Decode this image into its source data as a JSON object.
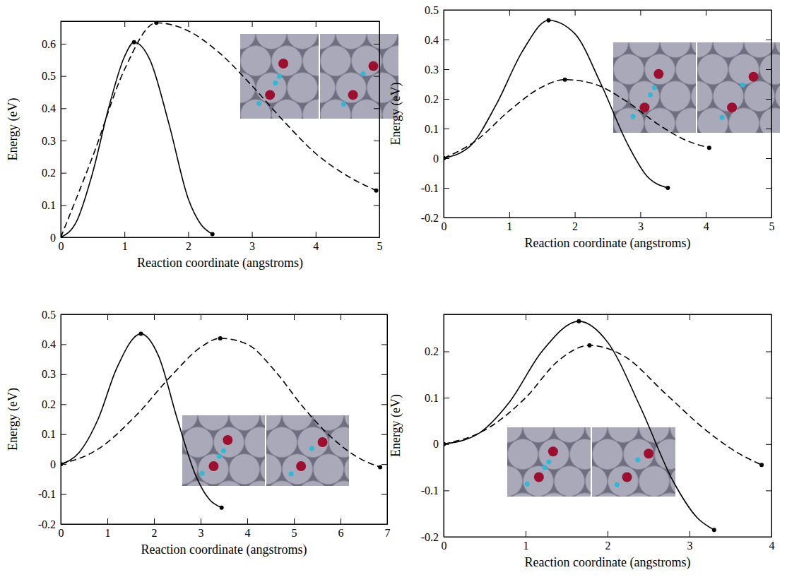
{
  "chart_data": [
    {
      "type": "line",
      "xlabel": "Reaction coordinate (angstroms)",
      "ylabel": "Energy (eV)",
      "xlim": [
        0,
        5
      ],
      "xticks": [
        0,
        1,
        2,
        3,
        4,
        5
      ],
      "ylim": [
        0,
        0.67
      ],
      "yticks": [
        0,
        0.1,
        0.2,
        0.3,
        0.4,
        0.5,
        0.6
      ],
      "series": [
        {
          "color": "#000000",
          "line_style": "solid",
          "marker": "circle",
          "x": [
            0,
            0.25,
            0.5,
            0.75,
            1.0,
            1.15,
            1.4,
            1.7,
            2.0,
            2.2,
            2.38
          ],
          "values": [
            0,
            0.05,
            0.2,
            0.4,
            0.56,
            0.605,
            0.55,
            0.35,
            0.12,
            0.04,
            0.01
          ]
        },
        {
          "color": "#000000",
          "line_style": "dashed",
          "marker": "circle",
          "x": [
            0,
            0.5,
            1.0,
            1.5,
            2.0,
            2.5,
            3.0,
            3.5,
            4.0,
            4.5,
            4.95
          ],
          "values": [
            0,
            0.25,
            0.52,
            0.665,
            0.64,
            0.57,
            0.47,
            0.36,
            0.26,
            0.19,
            0.145
          ]
        }
      ]
    },
    {
      "type": "line",
      "xlabel": "Reaction coordinate (angstroms)",
      "ylabel": "Energy (eV)",
      "xlim": [
        0,
        5
      ],
      "xticks": [
        0,
        1,
        2,
        3,
        4,
        5
      ],
      "ylim": [
        -0.2,
        0.5
      ],
      "yticks": [
        -0.2,
        -0.1,
        0,
        0.1,
        0.2,
        0.3,
        0.4,
        0.5
      ],
      "series": [
        {
          "color": "#000000",
          "line_style": "solid",
          "marker": "circle",
          "x": [
            0,
            0.4,
            0.8,
            1.2,
            1.6,
            2.0,
            2.4,
            2.8,
            3.1,
            3.42
          ],
          "values": [
            0,
            0.04,
            0.18,
            0.36,
            0.465,
            0.42,
            0.25,
            0.05,
            -0.06,
            -0.1
          ]
        },
        {
          "color": "#000000",
          "line_style": "dashed",
          "marker": "circle",
          "x": [
            0,
            0.5,
            1.0,
            1.5,
            1.85,
            2.3,
            2.8,
            3.3,
            3.7,
            4.05
          ],
          "values": [
            0,
            0.06,
            0.16,
            0.24,
            0.265,
            0.25,
            0.19,
            0.11,
            0.06,
            0.035
          ]
        }
      ]
    },
    {
      "type": "line",
      "xlabel": "Reaction coordinate (angstroms)",
      "ylabel": "Energy (eV)",
      "xlim": [
        0,
        7
      ],
      "xticks": [
        0,
        1,
        2,
        3,
        4,
        5,
        6,
        7
      ],
      "ylim": [
        -0.2,
        0.5
      ],
      "yticks": [
        -0.2,
        -0.1,
        0,
        0.1,
        0.2,
        0.3,
        0.4,
        0.5
      ],
      "series": [
        {
          "color": "#000000",
          "line_style": "solid",
          "marker": "circle",
          "x": [
            0,
            0.4,
            0.8,
            1.2,
            1.72,
            2.1,
            2.5,
            2.9,
            3.2,
            3.45
          ],
          "values": [
            0,
            0.04,
            0.15,
            0.32,
            0.435,
            0.36,
            0.15,
            -0.04,
            -0.12,
            -0.145
          ]
        },
        {
          "color": "#000000",
          "line_style": "dashed",
          "marker": "circle",
          "x": [
            0,
            0.8,
            1.6,
            2.4,
            3.0,
            3.42,
            4.0,
            4.6,
            5.2,
            5.8,
            6.4,
            6.85
          ],
          "values": [
            0,
            0.05,
            0.16,
            0.3,
            0.39,
            0.42,
            0.4,
            0.31,
            0.19,
            0.09,
            0.02,
            -0.01
          ]
        }
      ]
    },
    {
      "type": "line",
      "xlabel": "Reaction coordinate (angstroms)",
      "ylabel": "Energy (eV)",
      "xlim": [
        0,
        4
      ],
      "xticks": [
        0,
        1,
        2,
        3,
        4
      ],
      "ylim": [
        -0.2,
        0.28
      ],
      "yticks": [
        -0.2,
        -0.1,
        0,
        0.1,
        0.2
      ],
      "series": [
        {
          "color": "#000000",
          "line_style": "solid",
          "marker": "circle",
          "x": [
            0,
            0.4,
            0.8,
            1.2,
            1.65,
            2.0,
            2.4,
            2.8,
            3.1,
            3.3
          ],
          "values": [
            0,
            0.02,
            0.09,
            0.2,
            0.265,
            0.22,
            0.08,
            -0.08,
            -0.16,
            -0.185
          ]
        },
        {
          "color": "#000000",
          "line_style": "dashed",
          "marker": "circle",
          "x": [
            0,
            0.5,
            1.0,
            1.4,
            1.78,
            2.2,
            2.7,
            3.2,
            3.6,
            3.88
          ],
          "values": [
            0,
            0.03,
            0.1,
            0.18,
            0.213,
            0.19,
            0.11,
            0.03,
            -0.02,
            -0.045
          ]
        }
      ]
    }
  ]
}
